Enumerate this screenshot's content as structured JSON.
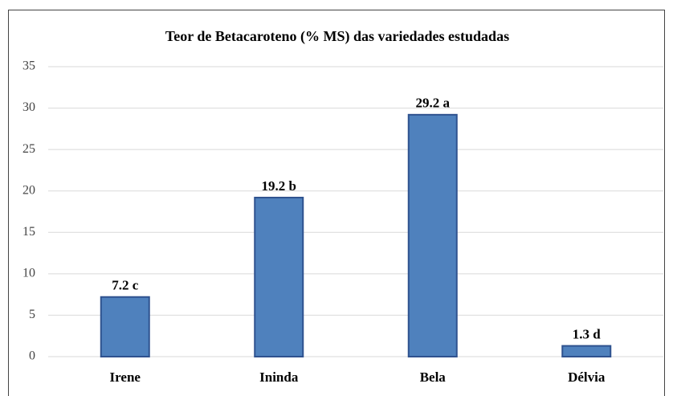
{
  "chart_data": {
    "type": "bar",
    "title": "Teor de Betacaroteno (% MS) das variedades estudadas",
    "categories": [
      "Irene",
      "Ininda",
      "Bela",
      "Délvia"
    ],
    "values": [
      7.2,
      19.2,
      29.2,
      1.3
    ],
    "value_labels": [
      "7.2 c",
      "19.2 b",
      "29.2 a",
      "1.3 d"
    ],
    "color": "#4f81bd",
    "ylim": [
      0,
      35
    ],
    "yticks": [
      0,
      5,
      10,
      15,
      20,
      25,
      30,
      35
    ],
    "grid": true
  }
}
